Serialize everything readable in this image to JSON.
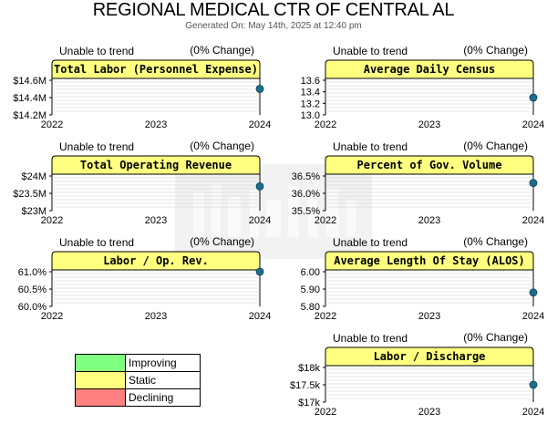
{
  "header": {
    "title": "REGIONAL MEDICAL CTR OF CENTRAL AL",
    "subtitle": "Generated On: May 14th, 2025 at 12:40 pm"
  },
  "legend": [
    {
      "label": "Improving",
      "color": "#80ff80"
    },
    {
      "label": "Static",
      "color": "#ffff80"
    },
    {
      "label": "Declining",
      "color": "#ff8080"
    }
  ],
  "colors": {
    "panel_header": "#ffff80",
    "dot": "#1a6e8e",
    "grid": "#cccccc"
  },
  "chart_data": [
    {
      "type": "scatter",
      "title": "Total Labor (Personnel Expense)",
      "trend_text": "Unable to trend",
      "change_text": "(0% Change)",
      "status": "Static",
      "x": [
        "2022",
        "2023",
        "2024"
      ],
      "points": [
        {
          "x": "2024",
          "y": 14.5
        }
      ],
      "ylim": [
        14.2,
        14.6
      ],
      "yticks": [
        14.2,
        14.4,
        14.6
      ],
      "ytick_labels": [
        "$14.2M",
        "$14.4M",
        "$14.6M"
      ]
    },
    {
      "type": "scatter",
      "title": "Average Daily Census",
      "trend_text": "Unable to trend",
      "change_text": "(0% Change)",
      "status": "Static",
      "x": [
        "2022",
        "2023",
        "2024"
      ],
      "points": [
        {
          "x": "2024",
          "y": 13.3
        }
      ],
      "ylim": [
        13.0,
        13.6
      ],
      "yticks": [
        13.0,
        13.2,
        13.4,
        13.6
      ],
      "ytick_labels": [
        "13.0",
        "13.2",
        "13.4",
        "13.6"
      ]
    },
    {
      "type": "scatter",
      "title": "Total Operating Revenue",
      "trend_text": "Unable to trend",
      "change_text": "(0% Change)",
      "status": "Static",
      "x": [
        "2022",
        "2023",
        "2024"
      ],
      "points": [
        {
          "x": "2024",
          "y": 23.7
        }
      ],
      "ylim": [
        23,
        24
      ],
      "yticks": [
        23,
        23.5,
        24
      ],
      "ytick_labels": [
        "$23M",
        "$23.5M",
        "$24M"
      ]
    },
    {
      "type": "scatter",
      "title": "Percent of Gov. Volume",
      "trend_text": "Unable to trend",
      "change_text": "(0% Change)",
      "status": "Static",
      "x": [
        "2022",
        "2023",
        "2024"
      ],
      "points": [
        {
          "x": "2024",
          "y": 36.3
        }
      ],
      "ylim": [
        35.5,
        36.5
      ],
      "yticks": [
        35.5,
        36.0,
        36.5
      ],
      "ytick_labels": [
        "35.5%",
        "36.0%",
        "36.5%"
      ]
    },
    {
      "type": "scatter",
      "title": "Labor / Op. Rev.",
      "trend_text": "Unable to trend",
      "change_text": "(0% Change)",
      "status": "Static",
      "x": [
        "2022",
        "2023",
        "2024"
      ],
      "points": [
        {
          "x": "2024",
          "y": 61.0
        }
      ],
      "ylim": [
        60.0,
        61.0
      ],
      "yticks": [
        60.0,
        60.5,
        61.0
      ],
      "ytick_labels": [
        "60.0%",
        "60.5%",
        "61.0%"
      ]
    },
    {
      "type": "scatter",
      "title": "Average Length Of Stay (ALOS)",
      "trend_text": "Unable to trend",
      "change_text": "(0% Change)",
      "status": "Static",
      "x": [
        "2022",
        "2023",
        "2024"
      ],
      "points": [
        {
          "x": "2024",
          "y": 5.88
        }
      ],
      "ylim": [
        5.8,
        6.0
      ],
      "yticks": [
        5.8,
        5.9,
        6.0
      ],
      "ytick_labels": [
        "5.80",
        "5.90",
        "6.00"
      ]
    },
    {
      "type": "scatter",
      "title": "Labor / Discharge",
      "trend_text": "Unable to trend",
      "change_text": "(0% Change)",
      "status": "Static",
      "x": [
        "2022",
        "2023",
        "2024"
      ],
      "points": [
        {
          "x": "2024",
          "y": 17.5
        }
      ],
      "ylim": [
        17,
        18
      ],
      "yticks": [
        17,
        17.5,
        18
      ],
      "ytick_labels": [
        "$17k",
        "$17.5k",
        "$18k"
      ]
    }
  ]
}
